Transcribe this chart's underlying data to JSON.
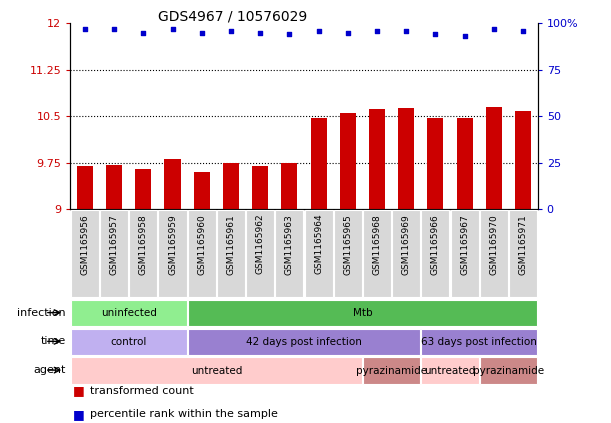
{
  "title": "GDS4967 / 10576029",
  "samples": [
    "GSM1165956",
    "GSM1165957",
    "GSM1165958",
    "GSM1165959",
    "GSM1165960",
    "GSM1165961",
    "GSM1165962",
    "GSM1165963",
    "GSM1165964",
    "GSM1165965",
    "GSM1165968",
    "GSM1165969",
    "GSM1165966",
    "GSM1165967",
    "GSM1165970",
    "GSM1165971"
  ],
  "bar_values": [
    9.7,
    9.72,
    9.65,
    9.82,
    9.6,
    9.75,
    9.7,
    9.75,
    10.48,
    10.55,
    10.62,
    10.63,
    10.48,
    10.48,
    10.65,
    10.58
  ],
  "percentile_values": [
    97,
    97,
    95,
    97,
    95,
    96,
    95,
    94,
    96,
    95,
    96,
    96,
    94,
    93,
    97,
    96
  ],
  "bar_color": "#cc0000",
  "dot_color": "#0000cc",
  "ylim_left": [
    9.0,
    12.0
  ],
  "ylim_right": [
    0,
    100
  ],
  "yticks_left": [
    9.0,
    9.75,
    10.5,
    11.25,
    12.0
  ],
  "yticks_right": [
    0,
    25,
    50,
    75,
    100
  ],
  "dotted_lines": [
    9.75,
    10.5,
    11.25
  ],
  "annotation_rows": [
    {
      "label": "infection",
      "segments": [
        {
          "start": 0,
          "end": 4,
          "text": "uninfected",
          "color": "#90EE90"
        },
        {
          "start": 4,
          "end": 16,
          "text": "Mtb",
          "color": "#55BB55"
        }
      ]
    },
    {
      "label": "time",
      "segments": [
        {
          "start": 0,
          "end": 4,
          "text": "control",
          "color": "#C0B0F0"
        },
        {
          "start": 4,
          "end": 12,
          "text": "42 days post infection",
          "color": "#9980D0"
        },
        {
          "start": 12,
          "end": 16,
          "text": "63 days post infection",
          "color": "#9980D0"
        }
      ]
    },
    {
      "label": "agent",
      "segments": [
        {
          "start": 0,
          "end": 10,
          "text": "untreated",
          "color": "#FFCCCC"
        },
        {
          "start": 10,
          "end": 12,
          "text": "pyrazinamide",
          "color": "#CC8888"
        },
        {
          "start": 12,
          "end": 14,
          "text": "untreated",
          "color": "#FFCCCC"
        },
        {
          "start": 14,
          "end": 16,
          "text": "pyrazinamide",
          "color": "#CC8888"
        }
      ]
    }
  ],
  "legend_items": [
    {
      "label": "transformed count",
      "color": "#cc0000"
    },
    {
      "label": "percentile rank within the sample",
      "color": "#0000cc"
    }
  ]
}
